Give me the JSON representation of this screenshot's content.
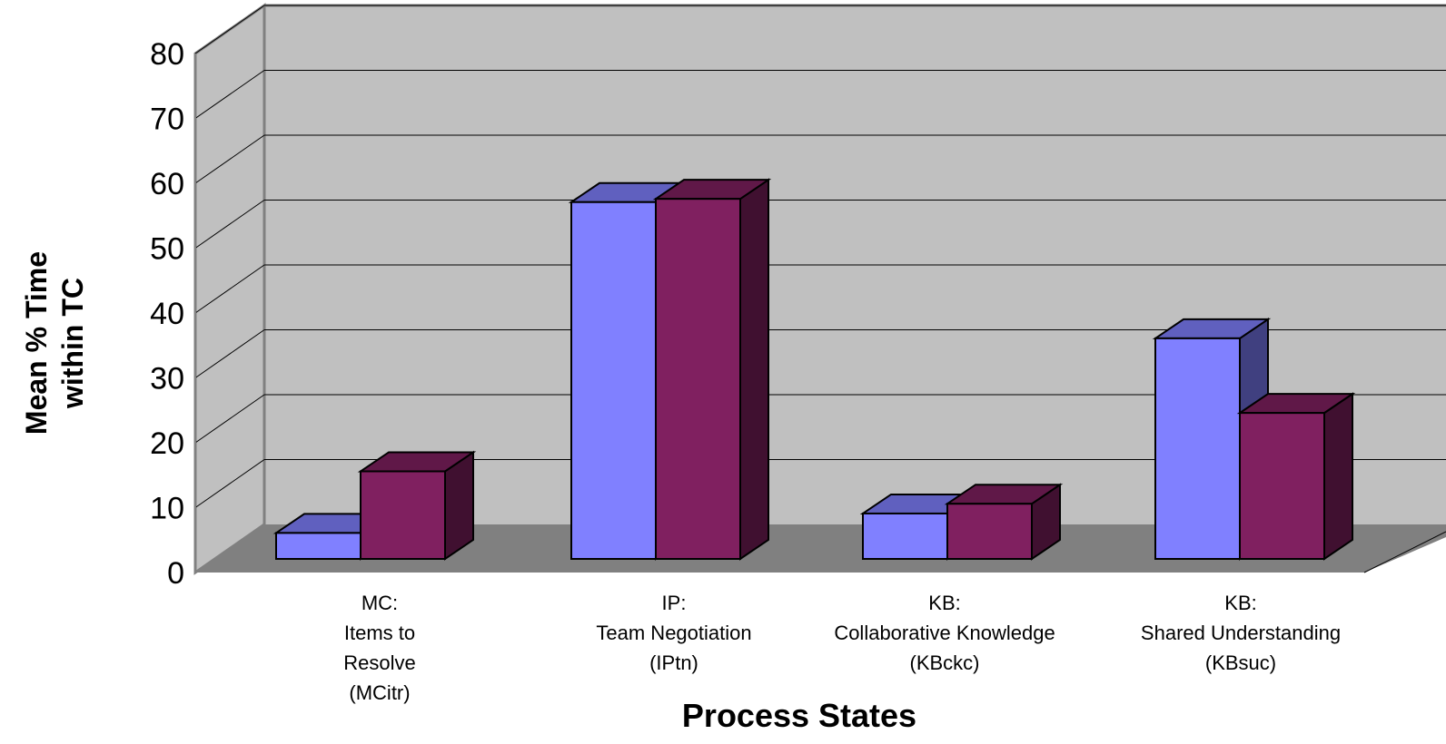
{
  "chart_data": {
    "type": "bar",
    "style": "3d-clustered-column",
    "title": "",
    "xlabel": "Process States",
    "ylabel": [
      "Mean % Time",
      "within TC"
    ],
    "ylim": [
      0,
      80
    ],
    "yticks": [
      0,
      10,
      20,
      30,
      40,
      50,
      60,
      70,
      80
    ],
    "grid": true,
    "categories": [
      [
        "MC:",
        "Items to",
        "Resolve",
        "(MCitr)"
      ],
      [
        "IP:",
        "Team Negotiation",
        "(IPtn)"
      ],
      [
        "KB:",
        "Collaborative Knowledge",
        "(KBckc)"
      ],
      [
        "KB:",
        "Shared Understanding",
        "(KBsuc)"
      ]
    ],
    "series": [
      {
        "values": [
          4,
          55,
          7,
          34
        ],
        "color": "#8080FF"
      },
      {
        "values": [
          13.5,
          55.5,
          8.5,
          22.5
        ],
        "color": "#802060"
      }
    ]
  }
}
